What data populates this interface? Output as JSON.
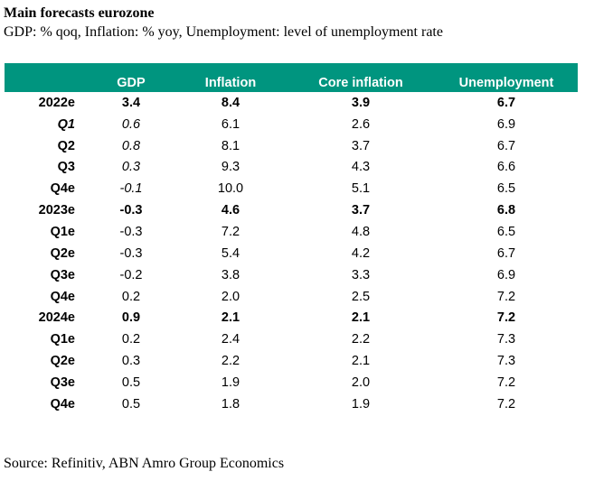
{
  "title": "Main forecasts eurozone",
  "subtitle": "GDP: % qoq, Inflation: % yoy, Unemployment: level of unemployment rate",
  "table": {
    "columns": [
      "",
      "GDP",
      "Inflation",
      "Core inflation",
      "Unemployment"
    ],
    "rows": [
      {
        "label": "2022e",
        "gdp": "3.4",
        "inflation": "8.4",
        "core": "3.9",
        "unemployment": "6.7",
        "year": true,
        "label_italic": false,
        "gdp_italic": false
      },
      {
        "label": "Q1",
        "gdp": "0.6",
        "inflation": "6.1",
        "core": "2.6",
        "unemployment": "6.9",
        "year": false,
        "label_italic": true,
        "gdp_italic": true
      },
      {
        "label": "Q2",
        "gdp": "0.8",
        "inflation": "8.1",
        "core": "3.7",
        "unemployment": "6.7",
        "year": false,
        "label_italic": false,
        "gdp_italic": true
      },
      {
        "label": "Q3",
        "gdp": "0.3",
        "inflation": "9.3",
        "core": "4.3",
        "unemployment": "6.6",
        "year": false,
        "label_italic": false,
        "gdp_italic": true
      },
      {
        "label": "Q4e",
        "gdp": "-0.1",
        "inflation": "10.0",
        "core": "5.1",
        "unemployment": "6.5",
        "year": false,
        "label_italic": false,
        "gdp_italic": true
      },
      {
        "label": "2023e",
        "gdp": "-0.3",
        "inflation": "4.6",
        "core": "3.7",
        "unemployment": "6.8",
        "year": true,
        "label_italic": false,
        "gdp_italic": false
      },
      {
        "label": "Q1e",
        "gdp": "-0.3",
        "inflation": "7.2",
        "core": "4.8",
        "unemployment": "6.5",
        "year": false,
        "label_italic": false,
        "gdp_italic": false
      },
      {
        "label": "Q2e",
        "gdp": "-0.3",
        "inflation": "5.4",
        "core": "4.2",
        "unemployment": "6.7",
        "year": false,
        "label_italic": false,
        "gdp_italic": false
      },
      {
        "label": "Q3e",
        "gdp": "-0.2",
        "inflation": "3.8",
        "core": "3.3",
        "unemployment": "6.9",
        "year": false,
        "label_italic": false,
        "gdp_italic": false
      },
      {
        "label": "Q4e",
        "gdp": "0.2",
        "inflation": "2.0",
        "core": "2.5",
        "unemployment": "7.2",
        "year": false,
        "label_italic": false,
        "gdp_italic": false
      },
      {
        "label": "2024e",
        "gdp": "0.9",
        "inflation": "2.1",
        "core": "2.1",
        "unemployment": "7.2",
        "year": true,
        "label_italic": false,
        "gdp_italic": false
      },
      {
        "label": "Q1e",
        "gdp": "0.2",
        "inflation": "2.4",
        "core": "2.2",
        "unemployment": "7.3",
        "year": false,
        "label_italic": false,
        "gdp_italic": false
      },
      {
        "label": "Q2e",
        "gdp": "0.3",
        "inflation": "2.2",
        "core": "2.1",
        "unemployment": "7.3",
        "year": false,
        "label_italic": false,
        "gdp_italic": false
      },
      {
        "label": "Q3e",
        "gdp": "0.5",
        "inflation": "1.9",
        "core": "2.0",
        "unemployment": "7.2",
        "year": false,
        "label_italic": false,
        "gdp_italic": false
      },
      {
        "label": "Q4e",
        "gdp": "0.5",
        "inflation": "1.8",
        "core": "1.9",
        "unemployment": "7.2",
        "year": false,
        "label_italic": false,
        "gdp_italic": false
      }
    ]
  },
  "source": "Source: Refinitiv, ABN Amro Group Economics",
  "colors": {
    "header_bg": "#00957f",
    "header_text": "#ffffff"
  }
}
